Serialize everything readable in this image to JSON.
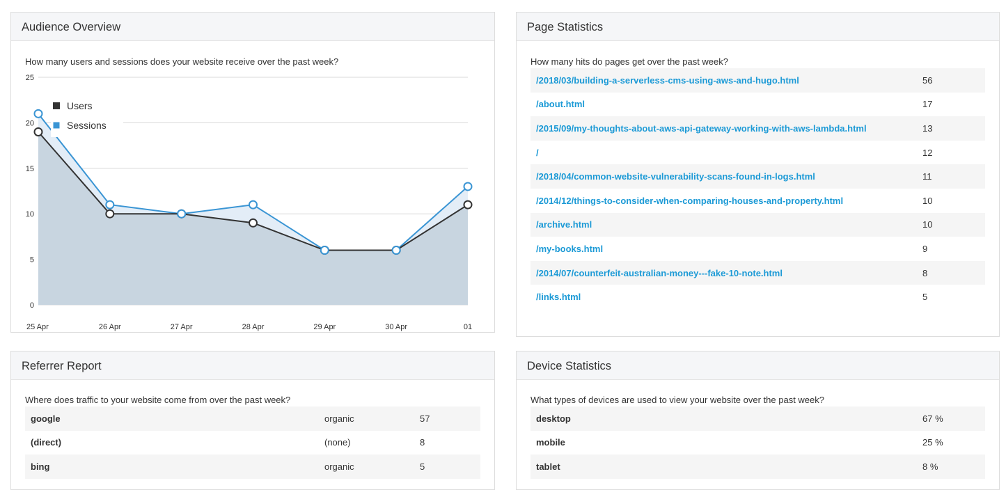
{
  "audience": {
    "title": "Audience Overview",
    "question": "How many users and sessions does your website receive over the past week?",
    "legend": {
      "users": "Users",
      "sessions": "Sessions"
    },
    "colors": {
      "users": "#333333",
      "sessions": "#3a95d4",
      "area": "#c8d5e0"
    }
  },
  "chart_data": {
    "type": "area",
    "categories": [
      "25 Apr",
      "26 Apr",
      "27 Apr",
      "28 Apr",
      "29 Apr",
      "30 Apr",
      "01 May"
    ],
    "series": [
      {
        "name": "Users",
        "values": [
          19,
          10,
          10,
          9,
          6,
          6,
          11
        ]
      },
      {
        "name": "Sessions",
        "values": [
          21,
          11,
          10,
          11,
          6,
          6,
          13
        ]
      }
    ],
    "yticks": [
      "0",
      "5",
      "10",
      "15",
      "20",
      "25"
    ],
    "ylim": [
      0,
      25
    ],
    "grid": true,
    "legend_position": "top-left"
  },
  "pages": {
    "title": "Page Statistics",
    "question": "How many hits do pages get over the past week?",
    "rows": [
      {
        "path": "/2018/03/building-a-serverless-cms-using-aws-and-hugo.html",
        "hits": "56"
      },
      {
        "path": "/about.html",
        "hits": "17"
      },
      {
        "path": "/2015/09/my-thoughts-about-aws-api-gateway-working-with-aws-lambda.html",
        "hits": "13"
      },
      {
        "path": "/",
        "hits": "12"
      },
      {
        "path": "/2018/04/common-website-vulnerability-scans-found-in-logs.html",
        "hits": "11"
      },
      {
        "path": "/2014/12/things-to-consider-when-comparing-houses-and-property.html",
        "hits": "10"
      },
      {
        "path": "/archive.html",
        "hits": "10"
      },
      {
        "path": "/my-books.html",
        "hits": "9"
      },
      {
        "path": "/2014/07/counterfeit-australian-money---fake-10-note.html",
        "hits": "8"
      },
      {
        "path": "/links.html",
        "hits": "5"
      }
    ]
  },
  "referrer": {
    "title": "Referrer Report",
    "question": "Where does traffic to your website come from over the past week?",
    "rows": [
      {
        "source": "google",
        "medium": "organic",
        "count": "57"
      },
      {
        "source": "(direct)",
        "medium": "(none)",
        "count": "8"
      },
      {
        "source": "bing",
        "medium": "organic",
        "count": "5"
      }
    ]
  },
  "devices": {
    "title": "Device Statistics",
    "question": "What types of devices are used to view your website over the past week?",
    "rows": [
      {
        "device": "desktop",
        "share": "67 %"
      },
      {
        "device": "mobile",
        "share": "25 %"
      },
      {
        "device": "tablet",
        "share": "8 %"
      }
    ]
  }
}
